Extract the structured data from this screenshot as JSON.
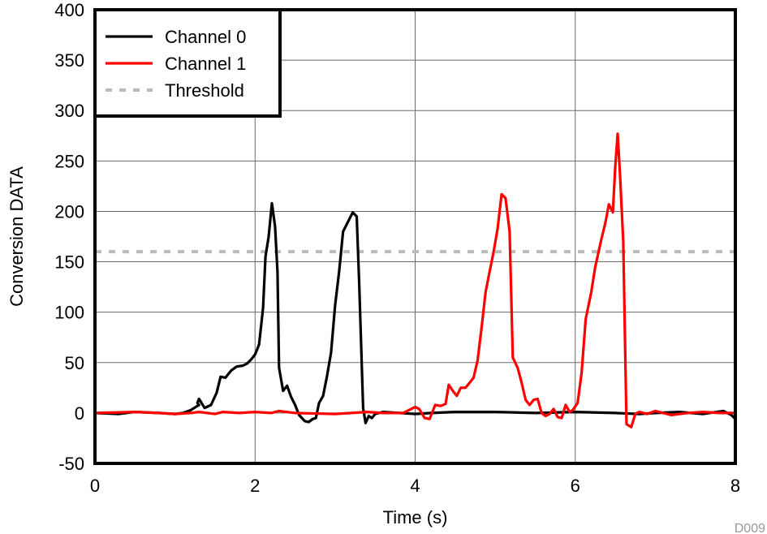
{
  "chart_data": {
    "type": "line",
    "xlabel": "Time (s)",
    "ylabel": "Conversion DATA",
    "xlim": [
      0,
      8
    ],
    "ylim": [
      -50,
      400
    ],
    "x_ticks": [
      0,
      2,
      4,
      6,
      8
    ],
    "y_ticks": [
      -50,
      0,
      50,
      100,
      150,
      200,
      250,
      300,
      350,
      400
    ],
    "grid": true,
    "legend_position": "top-left",
    "figure_id": "D009",
    "series": [
      {
        "name": "Channel 0",
        "color": "#000000",
        "style": "solid",
        "points": [
          [
            0,
            0
          ],
          [
            0.3,
            -1
          ],
          [
            0.5,
            1
          ],
          [
            0.8,
            0
          ],
          [
            1.0,
            -1
          ],
          [
            1.1,
            0
          ],
          [
            1.2,
            3
          ],
          [
            1.3,
            8
          ],
          [
            1.28,
            10
          ],
          [
            1.3,
            14
          ],
          [
            1.37,
            5
          ],
          [
            1.45,
            8
          ],
          [
            1.52,
            20
          ],
          [
            1.57,
            36
          ],
          [
            1.63,
            35
          ],
          [
            1.7,
            42
          ],
          [
            1.77,
            46
          ],
          [
            1.85,
            47
          ],
          [
            1.9,
            49
          ],
          [
            1.95,
            53
          ],
          [
            2.0,
            58
          ],
          [
            2.05,
            68
          ],
          [
            2.1,
            104
          ],
          [
            2.13,
            155
          ],
          [
            2.17,
            175
          ],
          [
            2.21,
            208
          ],
          [
            2.25,
            185
          ],
          [
            2.28,
            140
          ],
          [
            2.3,
            45
          ],
          [
            2.35,
            22
          ],
          [
            2.4,
            27
          ],
          [
            2.45,
            16
          ],
          [
            2.5,
            8
          ],
          [
            2.55,
            -2
          ],
          [
            2.62,
            -8
          ],
          [
            2.67,
            -9
          ],
          [
            2.72,
            -6
          ],
          [
            2.76,
            -5
          ],
          [
            2.8,
            10
          ],
          [
            2.85,
            17
          ],
          [
            2.9,
            37
          ],
          [
            2.95,
            60
          ],
          [
            3.0,
            107
          ],
          [
            3.05,
            140
          ],
          [
            3.1,
            180
          ],
          [
            3.17,
            191
          ],
          [
            3.22,
            199
          ],
          [
            3.27,
            195
          ],
          [
            3.3,
            130
          ],
          [
            3.35,
            5
          ],
          [
            3.38,
            -10
          ],
          [
            3.42,
            -3
          ],
          [
            3.46,
            -5
          ],
          [
            3.5,
            -1
          ],
          [
            3.6,
            1
          ],
          [
            3.8,
            0
          ],
          [
            4.0,
            -1
          ],
          [
            4.2,
            0
          ],
          [
            4.5,
            1
          ],
          [
            5.0,
            1
          ],
          [
            5.5,
            0
          ],
          [
            6.0,
            1
          ],
          [
            6.5,
            0
          ],
          [
            6.8,
            -1
          ],
          [
            7.0,
            0
          ],
          [
            7.3,
            1
          ],
          [
            7.6,
            -1
          ],
          [
            7.85,
            2
          ],
          [
            7.95,
            -2
          ],
          [
            8.0,
            -6
          ]
        ]
      },
      {
        "name": "Channel 1",
        "color": "#ff0000",
        "style": "solid",
        "points": [
          [
            0,
            0
          ],
          [
            0.5,
            1
          ],
          [
            0.8,
            0
          ],
          [
            1.0,
            -1
          ],
          [
            1.2,
            0
          ],
          [
            1.3,
            1
          ],
          [
            1.5,
            -1
          ],
          [
            1.6,
            1
          ],
          [
            1.8,
            0
          ],
          [
            2.0,
            1
          ],
          [
            2.2,
            0
          ],
          [
            2.3,
            2
          ],
          [
            2.5,
            0
          ],
          [
            3.0,
            -1
          ],
          [
            3.2,
            0
          ],
          [
            3.4,
            1
          ],
          [
            3.6,
            0
          ],
          [
            3.85,
            0
          ],
          [
            3.95,
            4
          ],
          [
            4.0,
            6
          ],
          [
            4.05,
            4
          ],
          [
            4.12,
            -5
          ],
          [
            4.18,
            -6
          ],
          [
            4.25,
            8
          ],
          [
            4.32,
            7
          ],
          [
            4.38,
            9
          ],
          [
            4.42,
            28
          ],
          [
            4.47,
            22
          ],
          [
            4.52,
            17
          ],
          [
            4.57,
            25
          ],
          [
            4.63,
            25
          ],
          [
            4.68,
            30
          ],
          [
            4.73,
            35
          ],
          [
            4.78,
            52
          ],
          [
            4.83,
            85
          ],
          [
            4.88,
            120
          ],
          [
            4.93,
            140
          ],
          [
            4.98,
            160
          ],
          [
            5.03,
            183
          ],
          [
            5.08,
            217
          ],
          [
            5.13,
            213
          ],
          [
            5.18,
            180
          ],
          [
            5.22,
            55
          ],
          [
            5.28,
            45
          ],
          [
            5.33,
            30
          ],
          [
            5.38,
            13
          ],
          [
            5.43,
            8
          ],
          [
            5.48,
            13
          ],
          [
            5.53,
            14
          ],
          [
            5.58,
            0
          ],
          [
            5.63,
            -3
          ],
          [
            5.68,
            -1
          ],
          [
            5.73,
            4
          ],
          [
            5.78,
            -4
          ],
          [
            5.83,
            -5
          ],
          [
            5.88,
            8
          ],
          [
            5.93,
            1
          ],
          [
            5.97,
            3
          ],
          [
            6.03,
            10
          ],
          [
            6.08,
            40
          ],
          [
            6.13,
            93
          ],
          [
            6.2,
            120
          ],
          [
            6.25,
            145
          ],
          [
            6.32,
            170
          ],
          [
            6.38,
            190
          ],
          [
            6.42,
            207
          ],
          [
            6.47,
            199
          ],
          [
            6.5,
            245
          ],
          [
            6.53,
            277
          ],
          [
            6.56,
            235
          ],
          [
            6.6,
            170
          ],
          [
            6.64,
            -11
          ],
          [
            6.7,
            -14
          ],
          [
            6.75,
            -1
          ],
          [
            6.8,
            1
          ],
          [
            6.9,
            -1
          ],
          [
            7.0,
            2
          ],
          [
            7.2,
            -2
          ],
          [
            7.4,
            0
          ],
          [
            7.6,
            1
          ],
          [
            7.8,
            0
          ],
          [
            8.0,
            0
          ]
        ]
      },
      {
        "name": "Threshold",
        "color": "#bbbbbb",
        "style": "dashed",
        "points": [
          [
            0,
            160
          ],
          [
            8,
            160
          ]
        ]
      }
    ]
  }
}
